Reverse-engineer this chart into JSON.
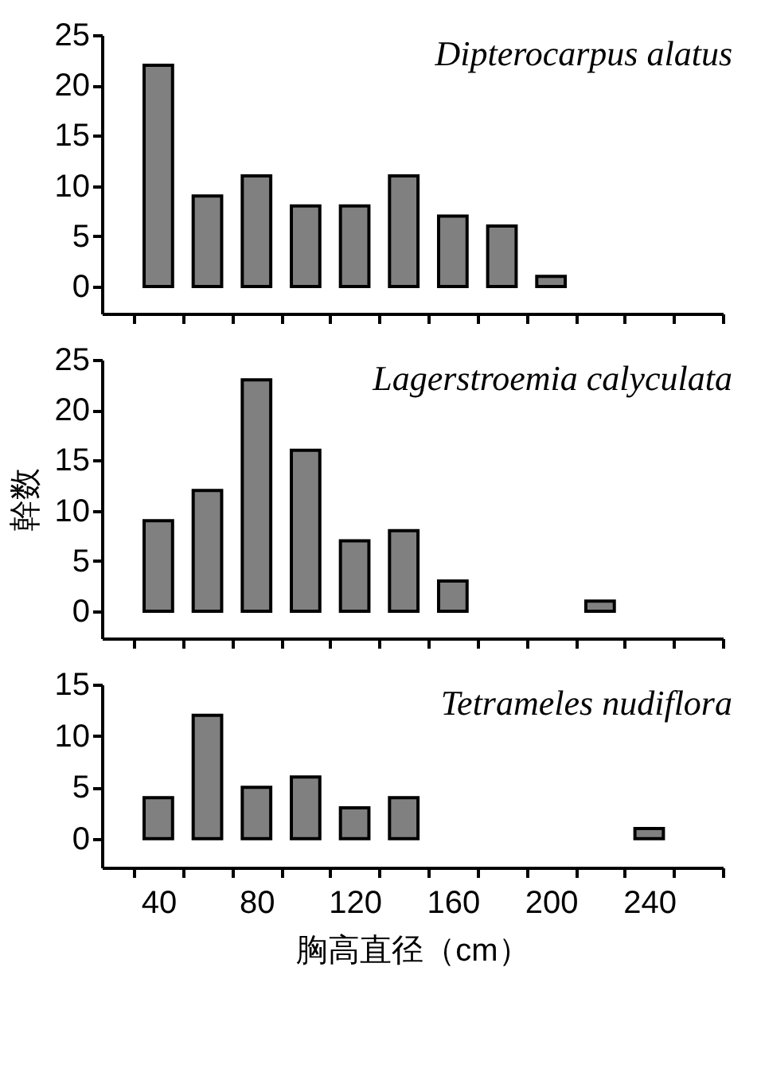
{
  "chart_data": [
    {
      "type": "bar",
      "x": [
        40,
        60,
        80,
        100,
        120,
        140,
        160,
        180,
        200
      ],
      "values": [
        22,
        9,
        11,
        8,
        8,
        11,
        7,
        6,
        1
      ],
      "color": "#808080",
      "xlim": [
        17,
        270
      ],
      "xticks": [
        {
          "value": 30,
          "label": null
        },
        {
          "value": 50,
          "label": null
        },
        {
          "value": 70,
          "label": null
        },
        {
          "value": 90,
          "label": null
        },
        {
          "value": 110,
          "label": null
        },
        {
          "value": 130,
          "label": null
        },
        {
          "value": 150,
          "label": null
        },
        {
          "value": 170,
          "label": null
        },
        {
          "value": 190,
          "label": null
        },
        {
          "value": 210,
          "label": null
        },
        {
          "value": 230,
          "label": null
        },
        {
          "value": 250,
          "label": null
        },
        {
          "value": 270,
          "label": null
        }
      ],
      "ylim": [
        -2.7,
        25
      ],
      "yticks": [
        0,
        5,
        10,
        15,
        20,
        25
      ],
      "tick_labels": "y",
      "annotations": [
        "Dipterocarpus alatus"
      ]
    },
    {
      "type": "bar",
      "x": [
        40,
        60,
        80,
        100,
        120,
        140,
        160,
        220
      ],
      "values": [
        9,
        12,
        23,
        16,
        7,
        8,
        3,
        1
      ],
      "color": "#808080",
      "xlim": [
        17,
        270
      ],
      "xticks": [
        {
          "value": 30,
          "label": null
        },
        {
          "value": 50,
          "label": null
        },
        {
          "value": 70,
          "label": null
        },
        {
          "value": 90,
          "label": null
        },
        {
          "value": 110,
          "label": null
        },
        {
          "value": 130,
          "label": null
        },
        {
          "value": 150,
          "label": null
        },
        {
          "value": 170,
          "label": null
        },
        {
          "value": 190,
          "label": null
        },
        {
          "value": 210,
          "label": null
        },
        {
          "value": 230,
          "label": null
        },
        {
          "value": 250,
          "label": null
        },
        {
          "value": 270,
          "label": null
        }
      ],
      "ylim": [
        -2.7,
        25
      ],
      "yticks": [
        0,
        5,
        10,
        15,
        20,
        25
      ],
      "ylabel": "幹数",
      "tick_labels": "y",
      "annotations": [
        "Lagerstroemia calyculata"
      ]
    },
    {
      "type": "bar",
      "x": [
        40,
        60,
        80,
        100,
        120,
        140,
        240
      ],
      "values": [
        4,
        12,
        5,
        6,
        3,
        4,
        1
      ],
      "color": "#808080",
      "xlim": [
        17,
        270
      ],
      "xticks": [
        {
          "value": 30,
          "label": null
        },
        40,
        {
          "value": 50,
          "label": null
        },
        {
          "value": 70,
          "label": null
        },
        80,
        {
          "value": 90,
          "label": null
        },
        {
          "value": 110,
          "label": null
        },
        120,
        {
          "value": 130,
          "label": null
        },
        {
          "value": 150,
          "label": null
        },
        160,
        {
          "value": 170,
          "label": null
        },
        {
          "value": 190,
          "label": null
        },
        200,
        {
          "value": 210,
          "label": null
        },
        {
          "value": 230,
          "label": null
        },
        240,
        {
          "value": 250,
          "label": null
        },
        {
          "value": 270,
          "label": null
        }
      ],
      "ylim": [
        -2.8,
        15
      ],
      "yticks": [
        0,
        5,
        10,
        15
      ],
      "xlabel": "胸高直径（cm）",
      "annotations": [
        "Tetrameles nudiflora"
      ]
    }
  ]
}
